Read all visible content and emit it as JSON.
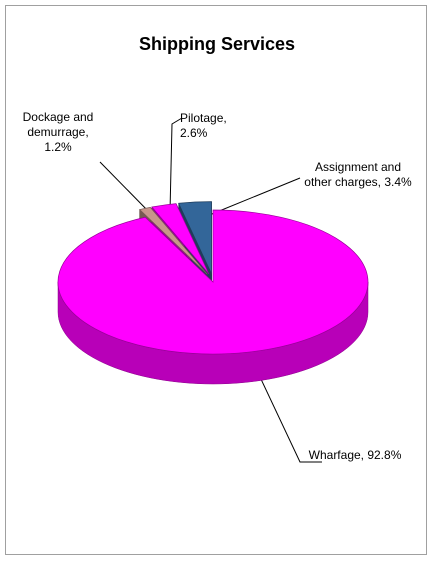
{
  "chart_data": {
    "type": "pie",
    "title": "Shipping Services",
    "labels": [
      "Wharfage, 92.8%",
      "Dockage and demurrage, 1.2%",
      "Pilotage, 2.6%",
      "Assignment and other charges, 3.4%"
    ],
    "values": [
      92.8,
      1.2,
      2.6,
      3.4
    ],
    "colors": [
      "#ff00ff",
      "#c8968a",
      "#ff00ff",
      "#336699"
    ]
  }
}
